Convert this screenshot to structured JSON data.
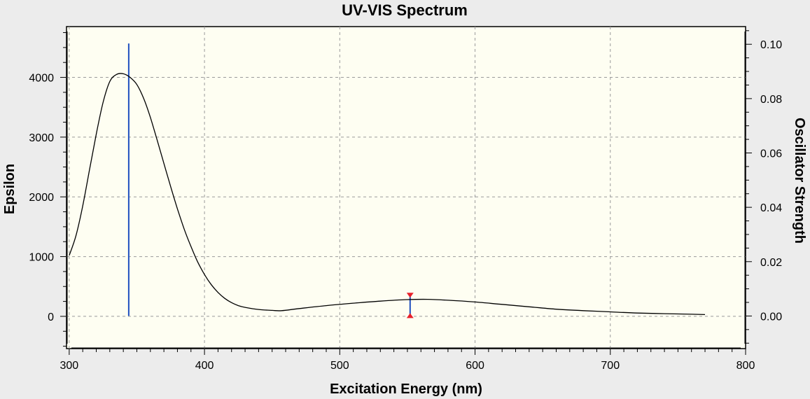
{
  "chart_data": {
    "type": "line",
    "title": "UV-VIS Spectrum",
    "xlabel": "Excitation Energy (nm)",
    "ylabel": "Epsilon",
    "y2label": "Oscillator Strength",
    "xlim": [
      298,
      800
    ],
    "ylim": [
      -540,
      4850
    ],
    "y2lim": [
      -0.012,
      0.1065
    ],
    "x_ticks": [
      300,
      400,
      500,
      600,
      700,
      800
    ],
    "y_ticks": [
      0,
      1000,
      2000,
      3000,
      4000
    ],
    "y2_ticks": [
      "0.00",
      "0.02",
      "0.04",
      "0.06",
      "0.08",
      "0.10"
    ],
    "grid": true,
    "series": [
      {
        "axis": "left",
        "color": "#000000",
        "x": [
          300,
          305,
          310,
          315,
          320,
          325,
          330,
          335,
          340,
          345,
          350,
          355,
          360,
          365,
          370,
          375,
          380,
          385,
          390,
          395,
          400,
          405,
          410,
          415,
          420,
          425,
          430,
          440,
          450,
          457,
          470,
          490,
          510,
          530,
          550,
          565,
          580,
          600,
          620,
          640,
          660,
          680,
          700,
          720,
          740,
          760,
          770
        ],
        "y": [
          1020,
          1350,
          1850,
          2450,
          3050,
          3580,
          3930,
          4050,
          4060,
          4000,
          3880,
          3650,
          3330,
          2950,
          2560,
          2170,
          1800,
          1460,
          1170,
          910,
          700,
          530,
          400,
          300,
          230,
          180,
          150,
          115,
          100,
          95,
          130,
          180,
          220,
          255,
          280,
          285,
          270,
          240,
          200,
          160,
          120,
          95,
          75,
          55,
          45,
          35,
          30
        ]
      }
    ],
    "sticks": [
      {
        "axis": "right",
        "x": 344,
        "f": 0.1003,
        "color": "#1f4fbf"
      },
      {
        "axis": "right",
        "x": 552,
        "f": 0.0083,
        "color": "#1f4fbf",
        "marker_color": "#e8202a"
      }
    ],
    "colors": {
      "background": "#ececec",
      "plot_background": "#fefef2",
      "grid": "#9a9a9a"
    }
  }
}
